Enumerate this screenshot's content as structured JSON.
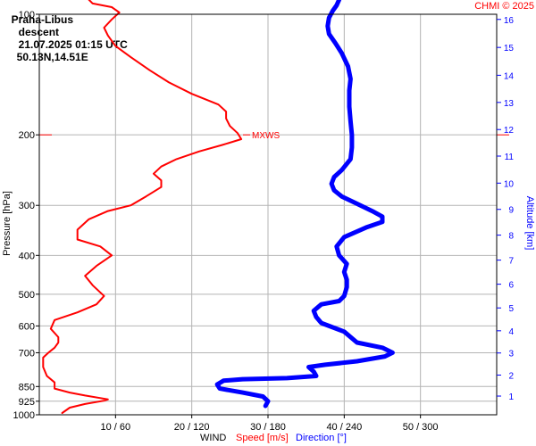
{
  "header": {
    "station": "Praha-Libus",
    "mode": "descent",
    "datetime": "21.07.2025 01:15 UTC",
    "coords": "50.13N,14.51E",
    "source": "CHMI © 2025"
  },
  "footer": {
    "wind": "WIND",
    "speed": "Speed [m/s]",
    "direction": "Direction [°]"
  },
  "colors": {
    "speed": "#ff0000",
    "direction": "#0000ff",
    "grid": "#b4b4b4",
    "axis": "#000000"
  },
  "chart_data": {
    "type": "line",
    "title": "Praha-Libus   descent   21.07.2025 01:15 UTC   50.13N,14.51E",
    "y_axis_label": "Pressure [hPa]",
    "y_axis_scale": "log",
    "pressure_ticks": [
      100,
      200,
      300,
      400,
      500,
      600,
      700,
      850,
      925,
      1000
    ],
    "ylim": [
      1000,
      100
    ],
    "x_ticks": [
      "10 / 60",
      "20 / 120",
      "30 / 180",
      "40 / 240",
      "50 / 300"
    ],
    "x_tick_values": [
      10,
      20,
      30,
      40,
      50
    ],
    "xlim": [
      0,
      60
    ],
    "altitude_axis": {
      "label": "Altitude [km]",
      "ticks": [
        1,
        2,
        3,
        4,
        5,
        6,
        7,
        8,
        9,
        10,
        11,
        12,
        13,
        14,
        15,
        16
      ],
      "pressure_at_tick": [
        898,
        796,
        701,
        617,
        541,
        472,
        411,
        356,
        307,
        264,
        226,
        194,
        166,
        142,
        121,
        103
      ]
    },
    "marker": {
      "label": "MXWS",
      "pressure": 200
    },
    "series": [
      {
        "name": "Speed [m/s]",
        "color": "#ff0000",
        "points": [
          [
            3,
            990
          ],
          [
            4,
            960
          ],
          [
            6,
            940
          ],
          [
            8.5,
            922
          ],
          [
            9,
            915
          ],
          [
            6,
            895
          ],
          [
            4,
            880
          ],
          [
            2,
            860
          ],
          [
            2,
            830
          ],
          [
            1,
            800
          ],
          [
            0.5,
            760
          ],
          [
            0.5,
            720
          ],
          [
            1.2,
            700
          ],
          [
            2,
            680
          ],
          [
            2.5,
            660
          ],
          [
            2.5,
            640
          ],
          [
            1.5,
            610
          ],
          [
            2,
            580
          ],
          [
            5,
            555
          ],
          [
            7.5,
            530
          ],
          [
            8.5,
            505
          ],
          [
            7,
            475
          ],
          [
            6,
            450
          ],
          [
            7.5,
            425
          ],
          [
            9.5,
            400
          ],
          [
            8,
            380
          ],
          [
            5,
            365
          ],
          [
            5,
            345
          ],
          [
            6.5,
            325
          ],
          [
            9,
            310
          ],
          [
            12,
            300
          ],
          [
            14,
            285
          ],
          [
            16,
            270
          ],
          [
            16,
            260
          ],
          [
            15,
            250
          ],
          [
            16,
            240
          ],
          [
            18,
            230
          ],
          [
            21,
            220
          ],
          [
            24,
            212
          ],
          [
            26.5,
            205
          ],
          [
            26,
            198
          ],
          [
            25,
            190
          ],
          [
            24.5,
            182
          ],
          [
            24.5,
            175
          ],
          [
            23.5,
            168
          ],
          [
            20,
            158
          ],
          [
            17,
            148
          ],
          [
            14.5,
            138
          ],
          [
            12,
            128
          ],
          [
            10,
            120
          ],
          [
            9,
            113
          ],
          [
            8.5,
            108
          ],
          [
            9.5,
            103
          ],
          [
            10.5,
            99
          ],
          [
            9.5,
            96
          ],
          [
            7,
            94
          ],
          [
            6.5,
            92
          ]
        ]
      },
      {
        "name": "Direction [°]",
        "color": "#0000ff",
        "points": [
          [
            178,
            950
          ],
          [
            180,
            925
          ],
          [
            176,
            900
          ],
          [
            160,
            880
          ],
          [
            142,
            860
          ],
          [
            140,
            840
          ],
          [
            145,
            822
          ],
          [
            160,
            815
          ],
          [
            195,
            810
          ],
          [
            218,
            800
          ],
          [
            216,
            780
          ],
          [
            212,
            760
          ],
          [
            225,
            750
          ],
          [
            250,
            735
          ],
          [
            272,
            715
          ],
          [
            278,
            700
          ],
          [
            270,
            680
          ],
          [
            250,
            660
          ],
          [
            240,
            620
          ],
          [
            222,
            590
          ],
          [
            218,
            570
          ],
          [
            216,
            550
          ],
          [
            222,
            530
          ],
          [
            236,
            520
          ],
          [
            240,
            505
          ],
          [
            242,
            480
          ],
          [
            242,
            460
          ],
          [
            240,
            440
          ],
          [
            242,
            420
          ],
          [
            236,
            400
          ],
          [
            234,
            380
          ],
          [
            240,
            360
          ],
          [
            258,
            340
          ],
          [
            270,
            330
          ],
          [
            270,
            320
          ],
          [
            262,
            310
          ],
          [
            248,
            295
          ],
          [
            238,
            285
          ],
          [
            232,
            275
          ],
          [
            230,
            265
          ],
          [
            232,
            255
          ],
          [
            238,
            245
          ],
          [
            245,
            230
          ],
          [
            246,
            215
          ],
          [
            246,
            200
          ],
          [
            245,
            185
          ],
          [
            244,
            170
          ],
          [
            244,
            155
          ],
          [
            245,
            145
          ],
          [
            243,
            135
          ],
          [
            238,
            125
          ],
          [
            233,
            118
          ],
          [
            228,
            112
          ],
          [
            227,
            107
          ],
          [
            228,
            102
          ],
          [
            231,
            98
          ],
          [
            234,
            95
          ],
          [
            236,
            92
          ]
        ]
      }
    ]
  }
}
